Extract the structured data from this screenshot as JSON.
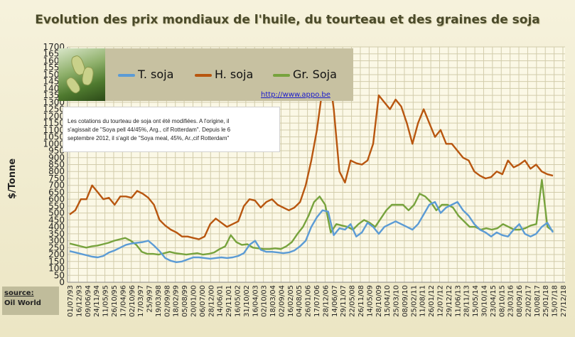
{
  "chart_data": {
    "type": "line",
    "title": "Evolution des prix mondiaux de l'huile, du tourteau et des graines de soja",
    "ylabel": "$/Tonne",
    "xlabel": "",
    "ylim": [
      0,
      1700
    ],
    "yticks": [
      0,
      50,
      100,
      150,
      200,
      250,
      300,
      350,
      400,
      450,
      500,
      550,
      600,
      650,
      700,
      750,
      800,
      850,
      900,
      950,
      1000,
      1050,
      1100,
      1150,
      1200,
      1250,
      1300,
      1350,
      1400,
      1450,
      1500,
      1550,
      1600,
      1650,
      1700
    ],
    "xticks": [
      "01/07/93",
      "16/12/93",
      "09/06/94",
      "24/11/94",
      "11/05/95",
      "26/10/95",
      "17/04/96",
      "02/10/96",
      "17/03/97",
      "25/9/97",
      "19/03/98",
      "02/09/98",
      "18/02/99",
      "05/08/99",
      "20/01/00",
      "06/07/00",
      "28/12/00",
      "14/06/01",
      "29/11/01",
      "16/05/02",
      "31/10/02",
      "16/04/03",
      "02/10/03",
      "18/03/04",
      "02/09/04",
      "16/02/05",
      "04/08/05",
      "26/01/06",
      "17/07/06",
      "28/12/06",
      "14/06/07",
      "29/11/07",
      "22/05/08",
      "26/11/08",
      "14/05/09",
      "28/10/09",
      "15/04/10",
      "25/03/10",
      "08/09/10",
      "25/02/11",
      "11/08/11",
      "26/01/12",
      "12/07/12",
      "29/12/12",
      "11/06/13",
      "28/11/13",
      "15/05/14",
      "30/10/14",
      "23/04/15",
      "08/10/15",
      "23/03/16",
      "08/09/16",
      "22/02/17",
      "10/08/17",
      "25/01/18",
      "15/07/18",
      "27/12/18"
    ],
    "grid": true,
    "legend_position": "top-left",
    "series": [
      {
        "name": "T. soja",
        "color": "#5b9bd5",
        "values": [
          225,
          215,
          205,
          195,
          185,
          180,
          190,
          215,
          230,
          250,
          270,
          280,
          285,
          290,
          300,
          265,
          225,
          175,
          155,
          145,
          150,
          165,
          180,
          180,
          175,
          170,
          175,
          180,
          175,
          180,
          190,
          210,
          270,
          300,
          235,
          220,
          220,
          215,
          210,
          215,
          230,
          260,
          300,
          400,
          470,
          520,
          510,
          340,
          390,
          380,
          420,
          330,
          360,
          430,
          400,
          350,
          400,
          420,
          440,
          420,
          400,
          380,
          420,
          490,
          560,
          580,
          500,
          540,
          560,
          580,
          520,
          480,
          420,
          380,
          360,
          330,
          360,
          340,
          330,
          380,
          420,
          350,
          330,
          350,
          400,
          430,
          360
        ]
      },
      {
        "name": "H. soja",
        "color": "#b8560f",
        "values": [
          490,
          520,
          600,
          600,
          700,
          650,
          600,
          610,
          560,
          620,
          620,
          610,
          660,
          640,
          610,
          560,
          450,
          410,
          380,
          360,
          330,
          330,
          320,
          310,
          330,
          420,
          460,
          430,
          400,
          420,
          440,
          550,
          600,
          590,
          540,
          580,
          600,
          560,
          540,
          520,
          540,
          580,
          700,
          880,
          1100,
          1400,
          1550,
          1250,
          800,
          720,
          880,
          860,
          850,
          880,
          1000,
          1350,
          1300,
          1250,
          1320,
          1270,
          1150,
          1000,
          1150,
          1250,
          1150,
          1050,
          1100,
          1000,
          1000,
          950,
          900,
          880,
          800,
          770,
          750,
          760,
          800,
          780,
          880,
          830,
          850,
          880,
          820,
          850,
          800,
          780,
          770
        ]
      },
      {
        "name": "Gr. Soja",
        "color": "#77a33d",
        "values": [
          280,
          270,
          260,
          250,
          260,
          265,
          275,
          285,
          300,
          310,
          320,
          300,
          270,
          220,
          205,
          205,
          200,
          210,
          220,
          210,
          205,
          200,
          205,
          210,
          200,
          205,
          215,
          240,
          260,
          340,
          290,
          270,
          275,
          250,
          245,
          240,
          240,
          245,
          240,
          260,
          290,
          350,
          400,
          480,
          580,
          620,
          560,
          360,
          420,
          410,
          400,
          380,
          420,
          450,
          430,
          400,
          460,
          520,
          560,
          560,
          560,
          520,
          560,
          640,
          620,
          580,
          520,
          560,
          560,
          540,
          480,
          440,
          400,
          400,
          380,
          390,
          380,
          390,
          420,
          400,
          380,
          380,
          390,
          410,
          420,
          740,
          400,
          370
        ]
      }
    ]
  },
  "note_lines": [
    "Les cotations du tourteau de soja ont été modifiées. A l'origine, il",
    "s'agissait de \"Soya pell 44/45%, Arg., cif Rotterdam\". Depuis le 6",
    "septembre 2012, il s'agit de \"Soya meal, 45%, Ar.,cif Rotterdam\""
  ],
  "url": "http://www.appo.be",
  "source_label": "source:",
  "source_value": "Oil World"
}
